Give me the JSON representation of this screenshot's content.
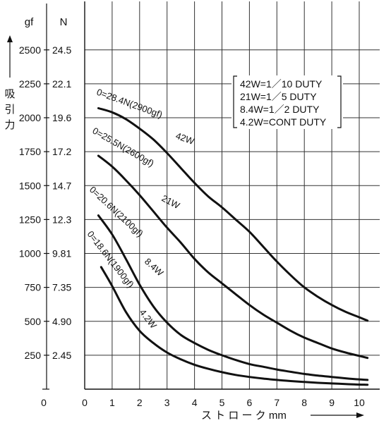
{
  "chart_data": {
    "type": "line",
    "xlabel": "ス ト ロ ー ク mm",
    "ylabel": "吸引力",
    "y_units": {
      "left": "gf",
      "right": "N"
    },
    "xlim": [
      0,
      10.5
    ],
    "ylim_gf": [
      0,
      2800
    ],
    "x_ticks": [
      "0",
      "1",
      "2",
      "3",
      "4",
      "5",
      "6",
      "7",
      "8",
      "9",
      "10"
    ],
    "y_ticks": [
      {
        "gf": "2500",
        "N": "24.5",
        "v": 2500
      },
      {
        "gf": "2250",
        "N": "22.1",
        "v": 2250
      },
      {
        "gf": "2000",
        "N": "19.6",
        "v": 2000
      },
      {
        "gf": "1750",
        "N": "17.2",
        "v": 1750
      },
      {
        "gf": "1500",
        "N": "14.7",
        "v": 1500
      },
      {
        "gf": "1250",
        "N": "12.3",
        "v": 1250
      },
      {
        "gf": "1000",
        "N": "9.81",
        "v": 1000
      },
      {
        "gf": "750",
        "N": "7.35",
        "v": 750
      },
      {
        "gf": "500",
        "N": "4.90",
        "v": 500
      },
      {
        "gf": "250",
        "N": "2.45",
        "v": 250
      }
    ],
    "y_zero_label": "0",
    "grid": true,
    "duty_notes": [
      "42W=1／10 DUTY",
      "21W=1／5 DUTY",
      "8.4W=1／2 DUTY",
      "4.2W=CONT DUTY"
    ],
    "series": [
      {
        "name": "42W",
        "label": "0=28.4N(2900gf)",
        "points": [
          [
            0.5,
            2070
          ],
          [
            1,
            2040
          ],
          [
            1.5,
            1990
          ],
          [
            2,
            1920
          ],
          [
            2.5,
            1840
          ],
          [
            3,
            1740
          ],
          [
            3.5,
            1630
          ],
          [
            4,
            1520
          ],
          [
            4.5,
            1420
          ],
          [
            5,
            1340
          ],
          [
            5.5,
            1250
          ],
          [
            6,
            1160
          ],
          [
            6.5,
            1050
          ],
          [
            7,
            940
          ],
          [
            7.5,
            840
          ],
          [
            8,
            750
          ],
          [
            8.5,
            680
          ],
          [
            9,
            620
          ],
          [
            9.5,
            570
          ],
          [
            10,
            530
          ],
          [
            10.3,
            505
          ]
        ]
      },
      {
        "name": "21W",
        "label": "0=25.5N(2600gf)",
        "points": [
          [
            0.5,
            1720
          ],
          [
            1,
            1640
          ],
          [
            1.5,
            1540
          ],
          [
            2,
            1430
          ],
          [
            2.5,
            1310
          ],
          [
            3,
            1190
          ],
          [
            3.5,
            1080
          ],
          [
            4,
            960
          ],
          [
            4.5,
            860
          ],
          [
            5,
            780
          ],
          [
            5.5,
            700
          ],
          [
            6,
            620
          ],
          [
            6.5,
            550
          ],
          [
            7,
            490
          ],
          [
            7.5,
            430
          ],
          [
            8,
            380
          ],
          [
            8.5,
            340
          ],
          [
            9,
            300
          ],
          [
            9.5,
            270
          ],
          [
            10,
            245
          ],
          [
            10.3,
            230
          ]
        ]
      },
      {
        "name": "8.4W",
        "label": "0=20.6N(2100gf)",
        "points": [
          [
            0.5,
            1280
          ],
          [
            1,
            1140
          ],
          [
            1.5,
            960
          ],
          [
            2,
            770
          ],
          [
            2.5,
            610
          ],
          [
            3,
            490
          ],
          [
            3.5,
            400
          ],
          [
            4,
            340
          ],
          [
            4.5,
            290
          ],
          [
            5,
            250
          ],
          [
            5.5,
            215
          ],
          [
            6,
            185
          ],
          [
            6.5,
            165
          ],
          [
            7,
            145
          ],
          [
            7.5,
            128
          ],
          [
            8,
            112
          ],
          [
            8.5,
            100
          ],
          [
            9,
            90
          ],
          [
            9.5,
            80
          ],
          [
            10,
            72
          ],
          [
            10.3,
            68
          ]
        ]
      },
      {
        "name": "4.2W",
        "label": "0=18.6N(1900gf)",
        "points": [
          [
            0.6,
            900
          ],
          [
            1,
            760
          ],
          [
            1.5,
            570
          ],
          [
            2,
            430
          ],
          [
            2.5,
            340
          ],
          [
            3,
            270
          ],
          [
            3.5,
            220
          ],
          [
            4,
            180
          ],
          [
            4.5,
            150
          ],
          [
            5,
            125
          ],
          [
            5.5,
            105
          ],
          [
            6,
            90
          ],
          [
            6.5,
            78
          ],
          [
            7,
            68
          ],
          [
            7.5,
            60
          ],
          [
            8,
            53
          ],
          [
            8.5,
            47
          ],
          [
            9,
            42
          ],
          [
            9.5,
            38
          ],
          [
            10,
            34
          ],
          [
            10.3,
            32
          ]
        ]
      }
    ]
  }
}
